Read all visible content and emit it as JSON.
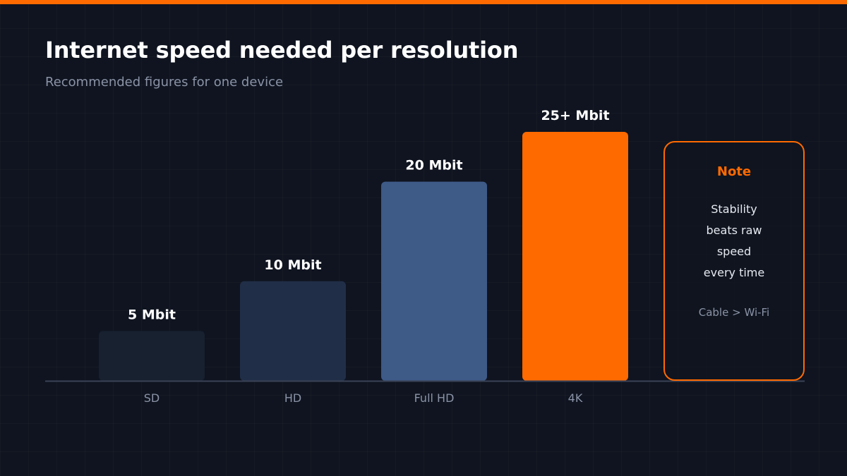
{
  "header": {
    "title": "Internet speed needed per resolution",
    "subtitle": "Recommended figures for one device"
  },
  "colors": {
    "accent": "#ff6a00",
    "background": "#0f1420",
    "baseline": "#3a4256"
  },
  "chart_data": {
    "type": "bar",
    "categories": [
      "SD",
      "HD",
      "Full HD",
      "4K"
    ],
    "values": [
      5,
      10,
      20,
      25
    ],
    "value_labels": [
      "5 Mbit",
      "10 Mbit",
      "20 Mbit",
      "25+ Mbit"
    ],
    "bar_colors": [
      "#172130",
      "#212e48",
      "#3e5a87",
      "#ff6a00"
    ],
    "ylim": [
      0,
      28.33
    ],
    "grid": false,
    "legend": "none"
  },
  "note": {
    "title": "Note",
    "lines": [
      "Stability",
      "beats raw",
      "speed",
      "every time"
    ],
    "footer": "Cable > Wi-Fi"
  }
}
